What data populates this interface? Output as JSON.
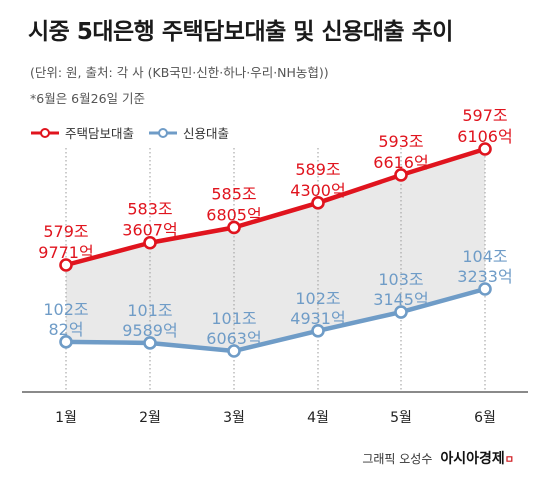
{
  "header": {
    "title": "시중 5대은행 주택담보대출 및 신용대출 추이",
    "subtitle": "(단위: 원, 출처: 각 사 (KB국민·신한·하나·우리·NH농협))",
    "note": "*6월은 6월26일 기준"
  },
  "footer": {
    "credit": "그래픽 오성수",
    "brand": "아시아경제",
    "brand_mark": "ㅁ"
  },
  "colors": {
    "mortgage": "#e0141e",
    "credit": "#6f9cc7",
    "grid": "#9a9a9a",
    "area": "#e9e9e9"
  },
  "chart_data": {
    "type": "line",
    "title": "시중 5대은행 주택담보대출 및 신용대출 추이",
    "unit": "원",
    "categories": [
      "1월",
      "2월",
      "3월",
      "4월",
      "5월",
      "6월"
    ],
    "legend_position": "top-left",
    "series": [
      {
        "name": "주택담보대출",
        "values": [
          5799771,
          5833607,
          5856805,
          5894300,
          5936616,
          5976106
        ],
        "labels": [
          [
            "579조",
            "9771억"
          ],
          [
            "583조",
            "3607억"
          ],
          [
            "585조",
            "6805억"
          ],
          [
            "589조",
            "4300억"
          ],
          [
            "593조",
            "6616억"
          ],
          [
            "597조",
            "6106억"
          ]
        ]
      },
      {
        "name": "신용대출",
        "values": [
          1020082,
          1019589,
          1016063,
          1024931,
          1033145,
          1043233
        ],
        "labels": [
          [
            "102조",
            "82억"
          ],
          [
            "101조",
            "9589억"
          ],
          [
            "101조",
            "6063억"
          ],
          [
            "102조",
            "4931억"
          ],
          [
            "103조",
            "3145억"
          ],
          [
            "104조",
            "3233억"
          ]
        ]
      }
    ]
  }
}
